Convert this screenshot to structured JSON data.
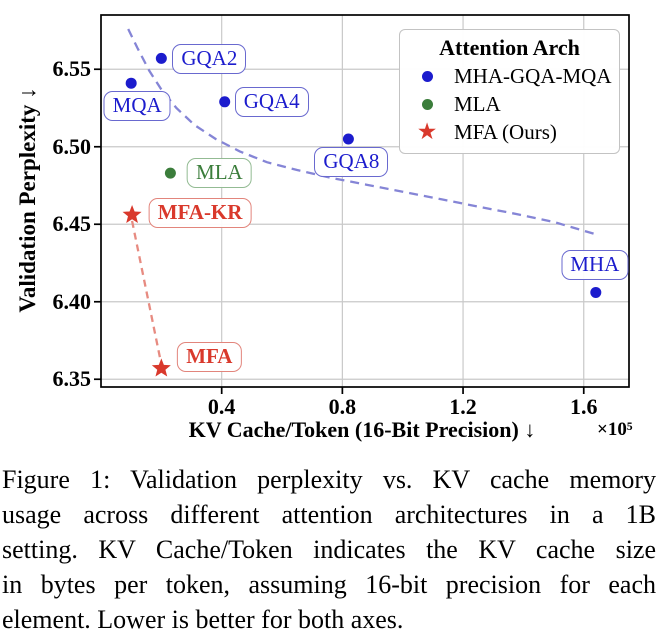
{
  "figure": {
    "caption_lines": [
      "Figure 1: Validation perplexity vs. KV cache memory",
      "usage across different attention architectures in a 1B",
      "setting. KV Cache/Token indicates the KV cache size",
      "in bytes per token, assuming 16-bit precision for each",
      "element. Lower is better for both axes."
    ]
  },
  "chart_data": {
    "type": "scatter",
    "title": "",
    "xlabel": "KV Cache/Token (16-Bit Precision) ↓",
    "ylabel": "Validation Perplexity ↓",
    "x_offset_label": "×10⁵",
    "xlim": [
      0,
      1.75
    ],
    "ylim": [
      6.345,
      6.585
    ],
    "grid": true,
    "xticks": [
      {
        "label": "0.4",
        "value": 0.4
      },
      {
        "label": "0.8",
        "value": 0.8
      },
      {
        "label": "1.2",
        "value": 1.2
      },
      {
        "label": "1.6",
        "value": 1.6
      }
    ],
    "yticks": [
      {
        "label": "6.55",
        "value": 6.55
      },
      {
        "label": "6.50",
        "value": 6.5
      },
      {
        "label": "6.45",
        "value": 6.45
      },
      {
        "label": "6.40",
        "value": 6.4
      },
      {
        "label": "6.35",
        "value": 6.35
      }
    ],
    "colors": {
      "blue": "#1c1ccd",
      "blue_box_border": "#6969cf",
      "green": "#3b7d3b",
      "green_box_border": "#93bb93",
      "red": "#d9392c",
      "red_box_border": "#e2857c",
      "trend_curve": "#8585d6",
      "connector": "#e78b81",
      "grid": "#c9c9c9",
      "frame": "#000000"
    },
    "legend": {
      "title": "Attention Arch",
      "position": "upper right",
      "items": [
        {
          "name": "MHA-GQA-MQA",
          "marker": "circle",
          "color": "#1c1ccd"
        },
        {
          "name": "MLA",
          "marker": "circle",
          "color": "#3b7d3b"
        },
        {
          "name": "MFA (Ours)",
          "marker": "star",
          "color": "#d9392c"
        }
      ]
    },
    "series": [
      {
        "name": "MHA-GQA-MQA",
        "marker": "circle",
        "color": "#1c1ccd",
        "box_border": "#6969cf",
        "bold_labels": false,
        "points": [
          {
            "label": "MQA",
            "x": 0.1,
            "y": 6.541,
            "label_dx": 6,
            "label_dy": 23
          },
          {
            "label": "GQA2",
            "x": 0.2,
            "y": 6.557,
            "label_dx": 48,
            "label_dy": 1
          },
          {
            "label": "GQA4",
            "x": 0.41,
            "y": 6.529,
            "label_dx": 47,
            "label_dy": 0
          },
          {
            "label": "GQA8",
            "x": 0.82,
            "y": 6.505,
            "label_dx": 3,
            "label_dy": 23
          },
          {
            "label": "MHA",
            "x": 1.64,
            "y": 6.406,
            "label_dx": -1,
            "label_dy": -27
          }
        ]
      },
      {
        "name": "MLA",
        "marker": "circle",
        "color": "#3b7d3b",
        "box_border": "#93bb93",
        "bold_labels": false,
        "points": [
          {
            "label": "MLA",
            "x": 0.23,
            "y": 6.483,
            "label_dx": 49,
            "label_dy": 0
          }
        ]
      },
      {
        "name": "MFA (Ours)",
        "marker": "star",
        "color": "#d9392c",
        "box_border": "#e2857c",
        "bold_labels": true,
        "points": [
          {
            "label": "MFA-KR",
            "x": 0.103,
            "y": 6.456,
            "label_dx": 68,
            "label_dy": -2
          },
          {
            "label": "MFA",
            "x": 0.2,
            "y": 6.357,
            "label_dx": 48,
            "label_dy": -11
          }
        ]
      }
    ],
    "trend_curve": {
      "style": "dashed",
      "color": "#8585d6",
      "points": [
        [
          0.09,
          6.576
        ],
        [
          0.12,
          6.564
        ],
        [
          0.16,
          6.549
        ],
        [
          0.2,
          6.537
        ],
        [
          0.25,
          6.525
        ],
        [
          0.31,
          6.514
        ],
        [
          0.38,
          6.505
        ],
        [
          0.46,
          6.497
        ],
        [
          0.55,
          6.49
        ],
        [
          0.65,
          6.485
        ],
        [
          0.76,
          6.48
        ],
        [
          0.88,
          6.4755
        ],
        [
          1.0,
          6.471
        ],
        [
          1.13,
          6.466
        ],
        [
          1.26,
          6.461
        ],
        [
          1.38,
          6.4565
        ],
        [
          1.5,
          6.4515
        ],
        [
          1.64,
          6.4435
        ]
      ]
    },
    "connector": {
      "style": "dashed",
      "color": "#e78b81",
      "from": {
        "x": 0.103,
        "y": 6.456
      },
      "to": {
        "x": 0.2,
        "y": 6.357
      }
    }
  }
}
